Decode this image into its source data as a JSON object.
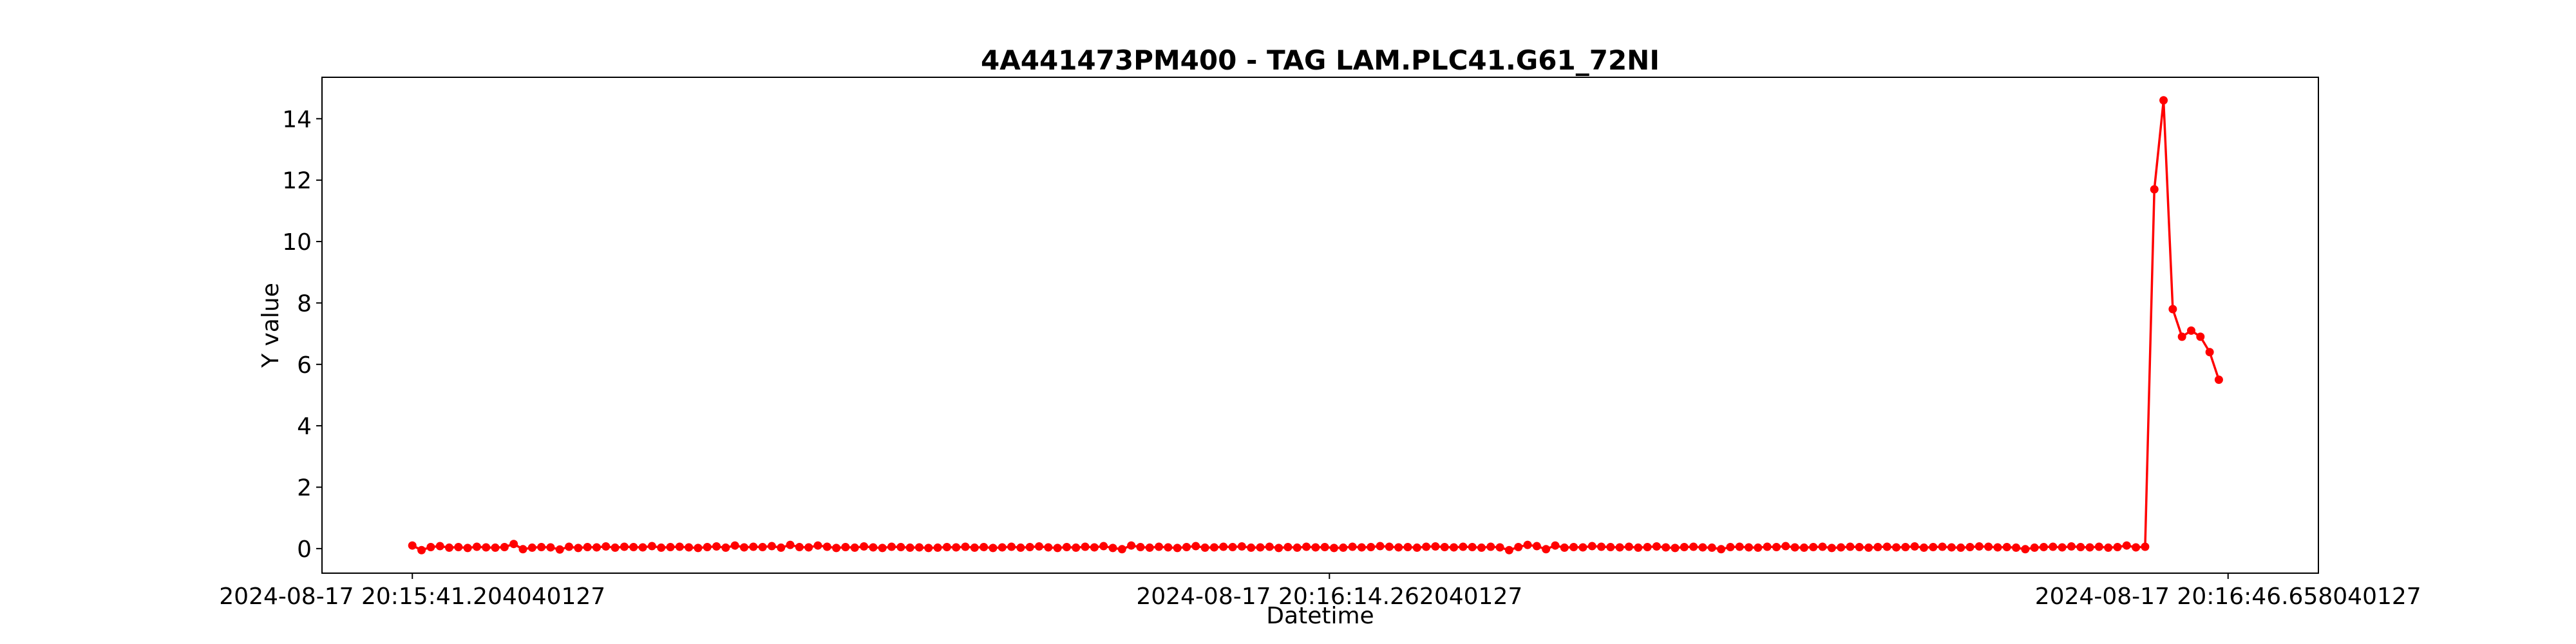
{
  "chart_data": {
    "type": "line",
    "title": "4A441473PM400 - TAG LAM.PLC41.G61_72NI",
    "x_label": "Datetime",
    "y_label": "Y value",
    "color": "red",
    "values": [
      0.1,
      -0.05,
      0.05,
      0.08,
      0.03,
      0.05,
      0.02,
      0.06,
      0.04,
      0.03,
      0.05,
      0.15,
      -0.02,
      0.03,
      0.05,
      0.04,
      -0.03,
      0.06,
      0.02,
      0.05,
      0.04,
      0.07,
      0.03,
      0.06,
      0.05,
      0.04,
      0.08,
      0.03,
      0.05,
      0.06,
      0.04,
      0.02,
      0.05,
      0.07,
      0.03,
      0.1,
      0.04,
      0.06,
      0.05,
      0.08,
      0.03,
      0.12,
      0.05,
      0.04,
      0.1,
      0.06,
      0.02,
      0.05,
      0.03,
      0.07,
      0.04,
      0.02,
      0.06,
      0.05,
      0.03,
      0.04,
      0.02,
      0.03,
      0.05,
      0.04,
      0.06,
      0.03,
      0.05,
      0.02,
      0.04,
      0.06,
      0.03,
      0.05,
      0.07,
      0.04,
      0.02,
      0.05,
      0.03,
      0.06,
      0.04,
      0.08,
      0.02,
      -0.02,
      0.1,
      0.05,
      0.03,
      0.06,
      0.04,
      0.02,
      0.05,
      0.08,
      0.03,
      0.04,
      0.06,
      0.05,
      0.07,
      0.03,
      0.04,
      0.06,
      0.02,
      0.05,
      0.03,
      0.06,
      0.04,
      0.05,
      0.02,
      0.03,
      0.06,
      0.04,
      0.05,
      0.08,
      0.06,
      0.04,
      0.05,
      0.03,
      0.06,
      0.07,
      0.05,
      0.04,
      0.06,
      0.05,
      0.03,
      0.06,
      0.04,
      -0.05,
      0.05,
      0.12,
      0.08,
      -0.02,
      0.1,
      0.03,
      0.05,
      0.04,
      0.08,
      0.06,
      0.05,
      0.04,
      0.06,
      0.03,
      0.05,
      0.07,
      0.04,
      0.02,
      0.05,
      0.06,
      0.04,
      0.03,
      -0.02,
      0.05,
      0.06,
      0.04,
      0.03,
      0.06,
      0.05,
      0.08,
      0.04,
      0.03,
      0.05,
      0.06,
      0.02,
      0.04,
      0.06,
      0.05,
      0.03,
      0.05,
      0.06,
      0.04,
      0.05,
      0.07,
      0.03,
      0.05,
      0.06,
      0.04,
      0.03,
      0.05,
      0.07,
      0.06,
      0.04,
      0.05,
      0.03,
      -0.02,
      0.03,
      0.05,
      0.06,
      0.04,
      0.07,
      0.05,
      0.04,
      0.06,
      0.03,
      0.05,
      0.1,
      0.04,
      0.06,
      11.7,
      14.6,
      7.8,
      6.9,
      7.1,
      6.9,
      6.4,
      5.5
    ],
    "xlim": [
      -9.8,
      206.8
    ],
    "xticks": [
      {
        "value": 0,
        "label": "2024-08-17 20:15:41.204040127"
      },
      {
        "value": 99.5,
        "label": "2024-08-17 20:16:14.262040127"
      },
      {
        "value": 197,
        "label": "2024-08-17 20:16:46.658040127"
      }
    ],
    "ylim": [
      -0.8,
      15.35
    ],
    "yticks": [
      0,
      2,
      4,
      6,
      8,
      10,
      12,
      14
    ]
  }
}
